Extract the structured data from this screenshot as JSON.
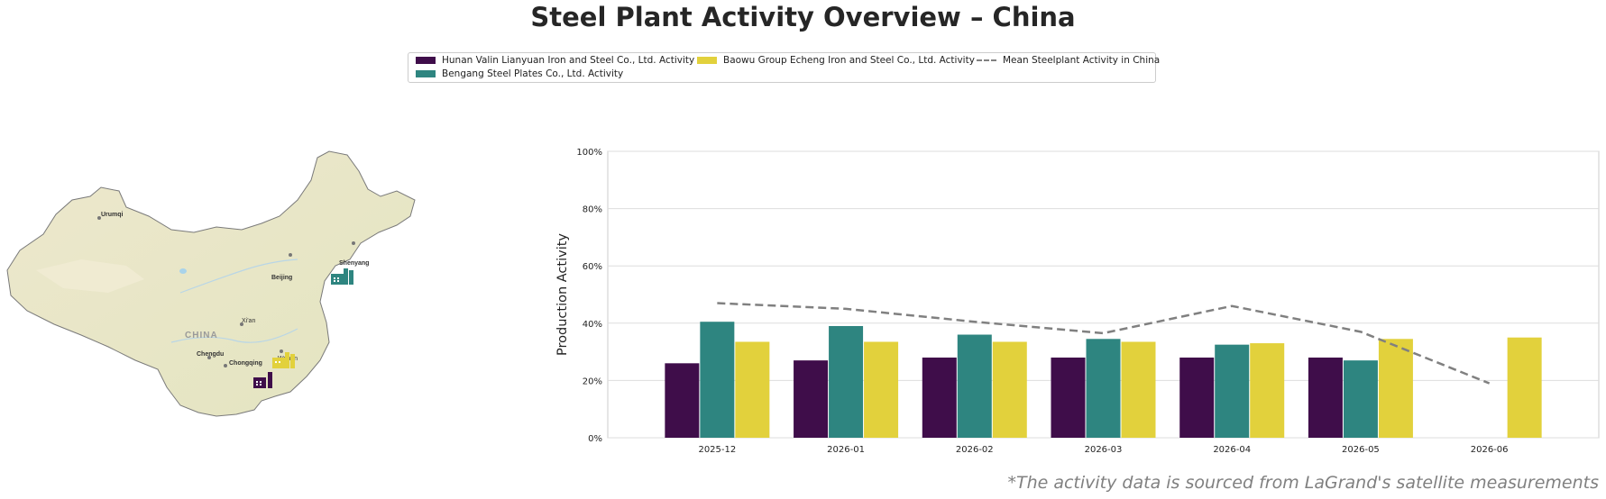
{
  "title": "Steel Plant Activity Overview – China",
  "footnote": "*The activity data is sourced from LaGrand's satellite measurements",
  "legend": {
    "items": [
      {
        "label": "Hunan Valin Lianyuan Iron and Steel Co., Ltd. Activity",
        "color": "#3f0d4a"
      },
      {
        "label": "Baowu Group Echeng Iron and Steel Co., Ltd. Activity",
        "color": "#e2d13c"
      },
      {
        "label": "Mean Steelplant Activity in China",
        "color": "#808080"
      },
      {
        "label": "Bengang Steel Plates Co., Ltd. Activity",
        "color": "#2e8580"
      }
    ]
  },
  "map": {
    "country_label": "CHINA",
    "cities": [
      "Urumqi",
      "Beijing",
      "Shenyang",
      "Xi'an",
      "Chengdu",
      "Chongqing",
      "Wuhan"
    ],
    "markers": [
      {
        "name": "Bengang Steel Plates",
        "color": "#2e8580",
        "icon": "factory-icon"
      },
      {
        "name": "Baowu Group Echeng",
        "color": "#e2d13c",
        "icon": "factory-icon"
      },
      {
        "name": "Hunan Valin Lianyuan",
        "color": "#3f0d4a",
        "icon": "factory-icon"
      }
    ]
  },
  "chart_data": {
    "type": "bar",
    "ylabel": "Production Activity",
    "ylim": [
      0,
      100
    ],
    "yticks": [
      "0%",
      "20%",
      "40%",
      "60%",
      "80%",
      "100%"
    ],
    "categories": [
      "2025-12",
      "2026-01",
      "2026-02",
      "2026-03",
      "2026-04",
      "2026-05",
      "2026-06"
    ],
    "series": [
      {
        "name": "Hunan Valin Lianyuan Iron and Steel Co., Ltd. Activity",
        "color": "#3f0d4a",
        "values": [
          26,
          27,
          28,
          28,
          28,
          28,
          null
        ]
      },
      {
        "name": "Bengang Steel Plates Co., Ltd. Activity",
        "color": "#2e8580",
        "values": [
          40.5,
          39,
          36,
          34.5,
          32.5,
          27,
          null
        ]
      },
      {
        "name": "Baowu Group Echeng Iron and Steel Co., Ltd. Activity",
        "color": "#e2d13c",
        "values": [
          33.5,
          33.5,
          33.5,
          33.5,
          33,
          34.5,
          35
        ]
      }
    ],
    "mean_line": {
      "name": "Mean Steelplant Activity in China",
      "color": "#808080",
      "style": "dashed",
      "values": [
        47,
        45,
        40.5,
        36.5,
        46,
        37,
        19
      ]
    },
    "grid": true
  }
}
